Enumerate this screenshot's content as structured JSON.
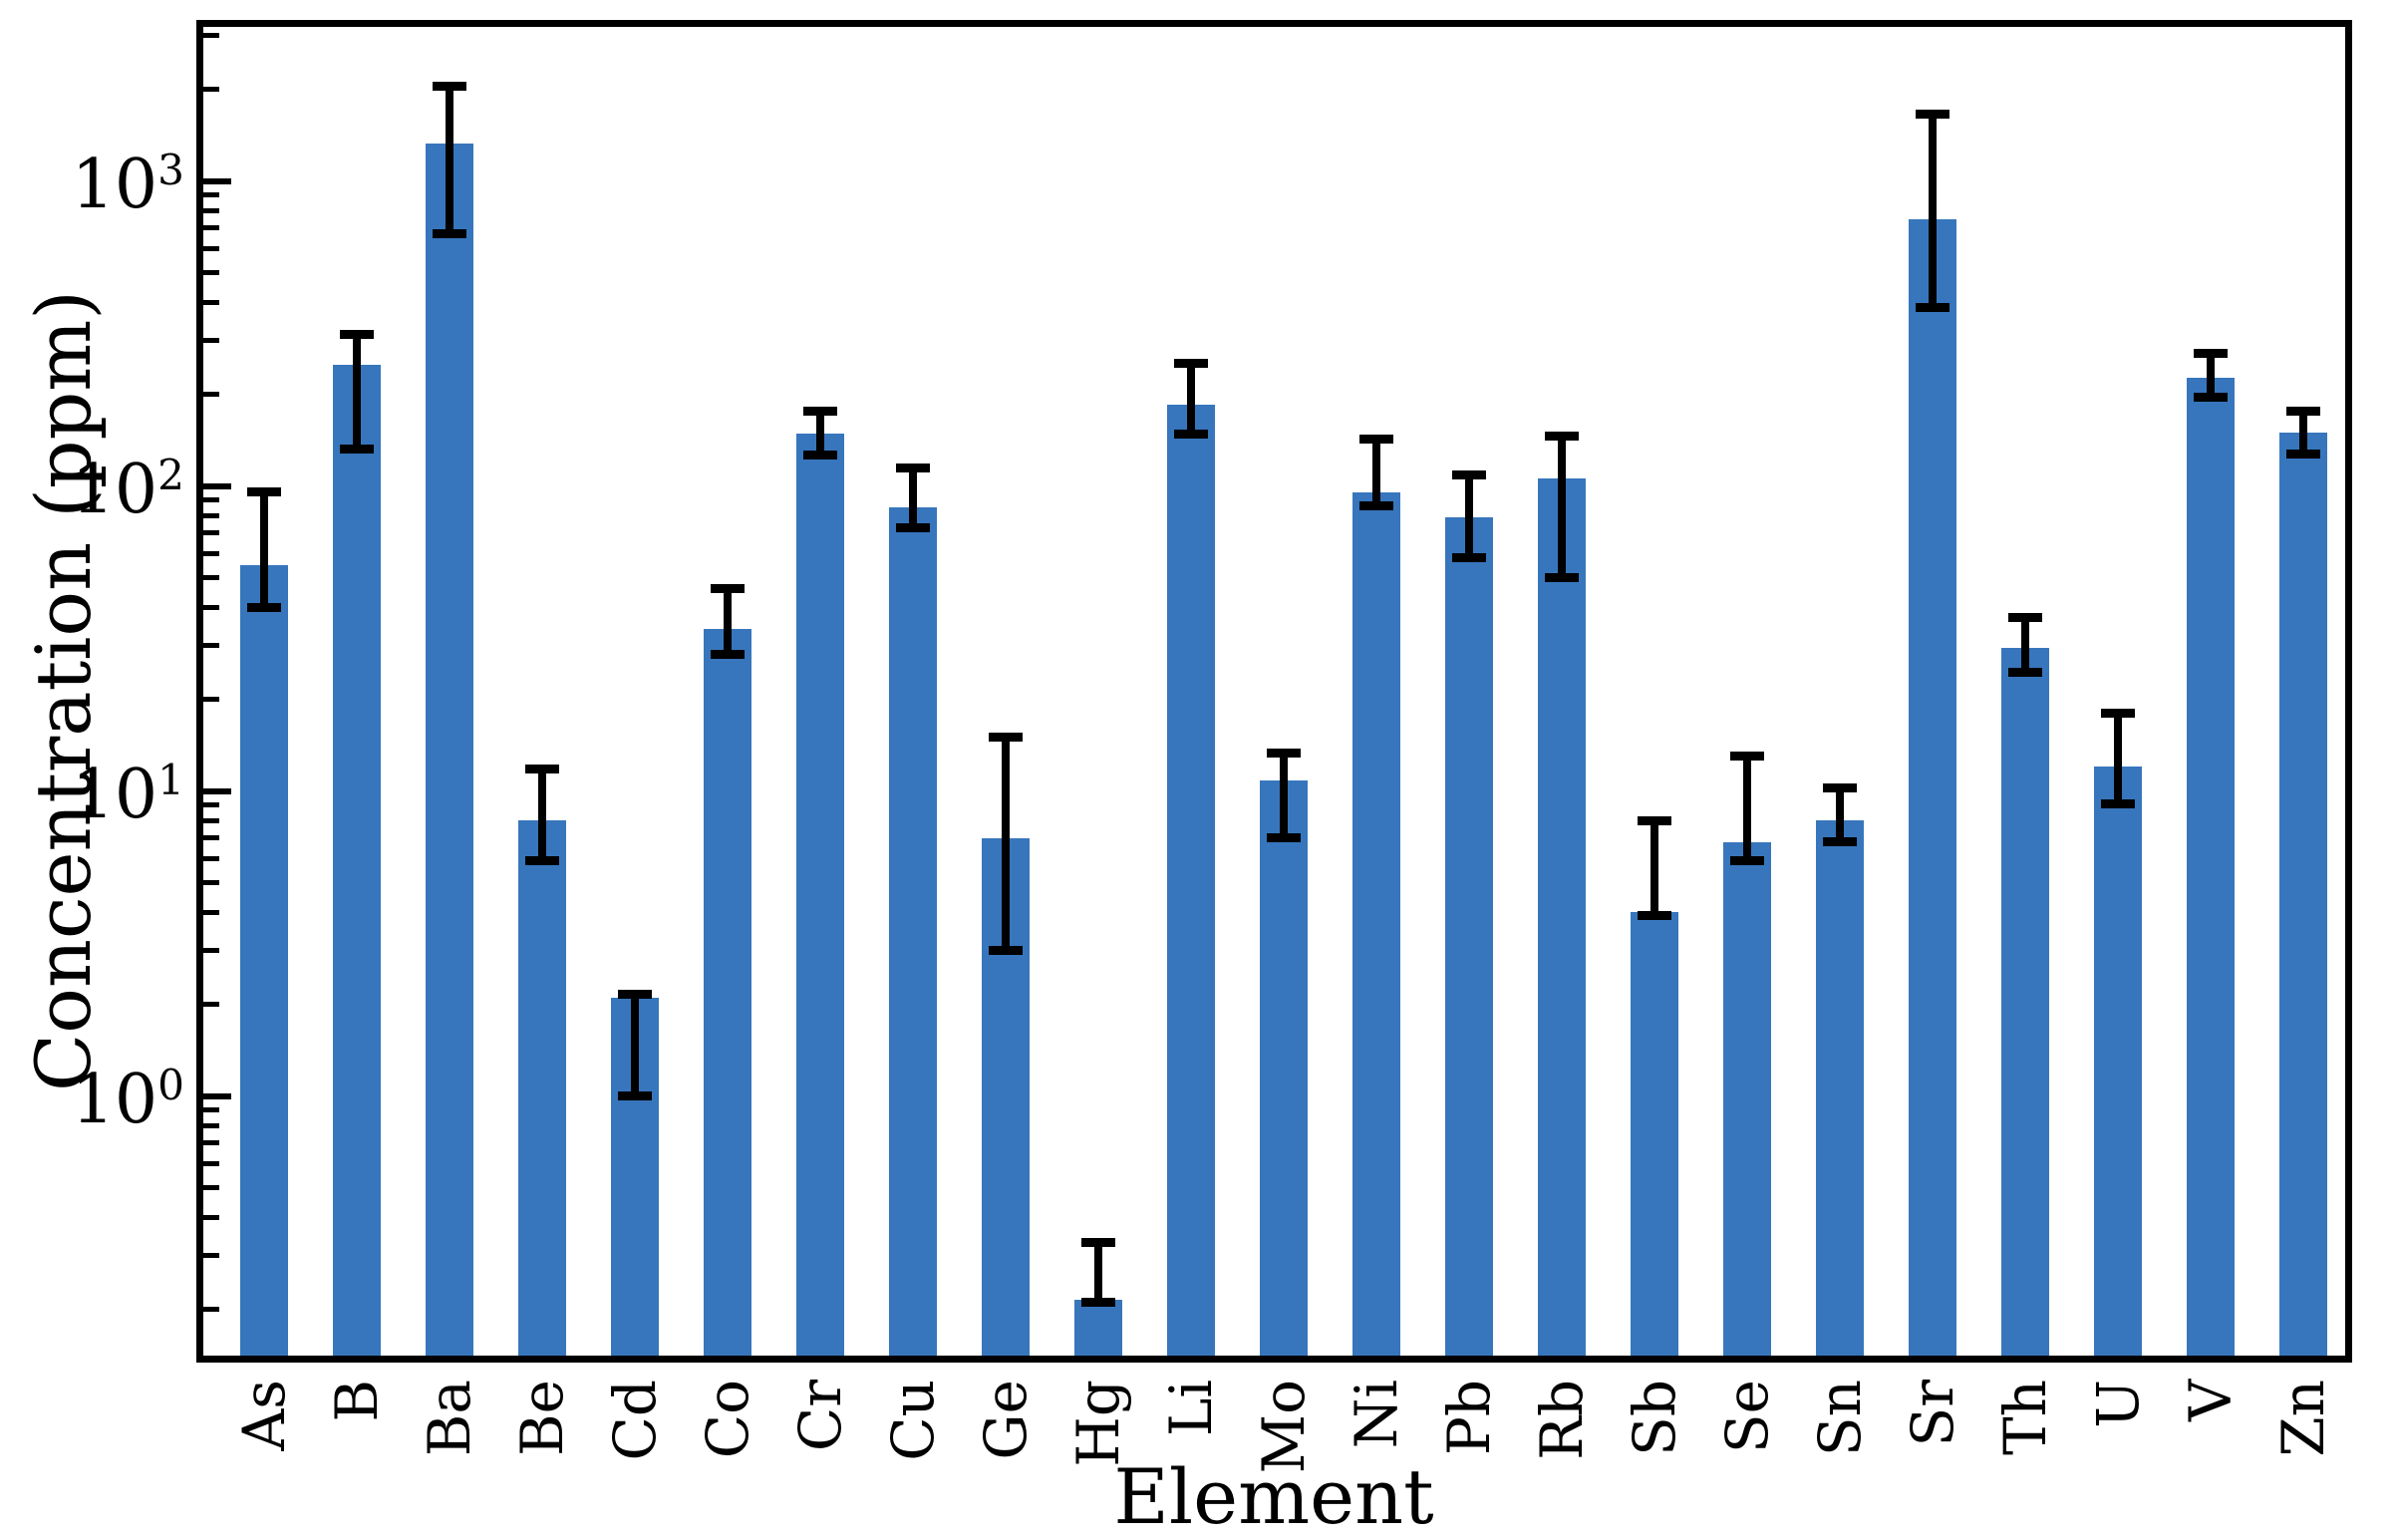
{
  "chart_data": {
    "type": "bar",
    "title": "",
    "xlabel": "Element",
    "ylabel": "Concentration (ppm)",
    "y_scale": "log",
    "ylim": [
      0.14,
      3200
    ],
    "y_tick_exponents": [
      0,
      1,
      2,
      3
    ],
    "grid": false,
    "legend": false,
    "bar_color": "#3776bc",
    "error_bar_color": "#000000",
    "axis_color": "#000000",
    "background_color": "#ffffff",
    "categories": [
      "As",
      "B",
      "Ba",
      "Be",
      "Cd",
      "Co",
      "Cr",
      "Cu",
      "Ge",
      "Hg",
      "Li",
      "Mo",
      "Ni",
      "Pb",
      "Rb",
      "Sb",
      "Se",
      "Sn",
      "Sr",
      "Th",
      "U",
      "V",
      "Zn"
    ],
    "values": [
      55,
      250,
      1330,
      8,
      2.1,
      34,
      148,
      85,
      7,
      0.215,
      185,
      10.8,
      95,
      79,
      106,
      4,
      6.8,
      8,
      750,
      29.5,
      12,
      227,
      150
    ],
    "error_low": [
      40,
      132,
      670,
      5.9,
      1.0,
      28,
      126,
      73,
      3.0,
      0.21,
      148,
      7.0,
      86,
      58,
      50,
      3.9,
      5.9,
      6.8,
      385,
      24.5,
      9.1,
      196,
      127
    ],
    "error_high": [
      96,
      313,
      2050,
      11.8,
      2.15,
      46,
      176,
      115,
      15,
      0.33,
      253,
      13.3,
      143,
      109,
      146,
      8.0,
      13.0,
      10.2,
      1660,
      37,
      18,
      272,
      176
    ]
  }
}
